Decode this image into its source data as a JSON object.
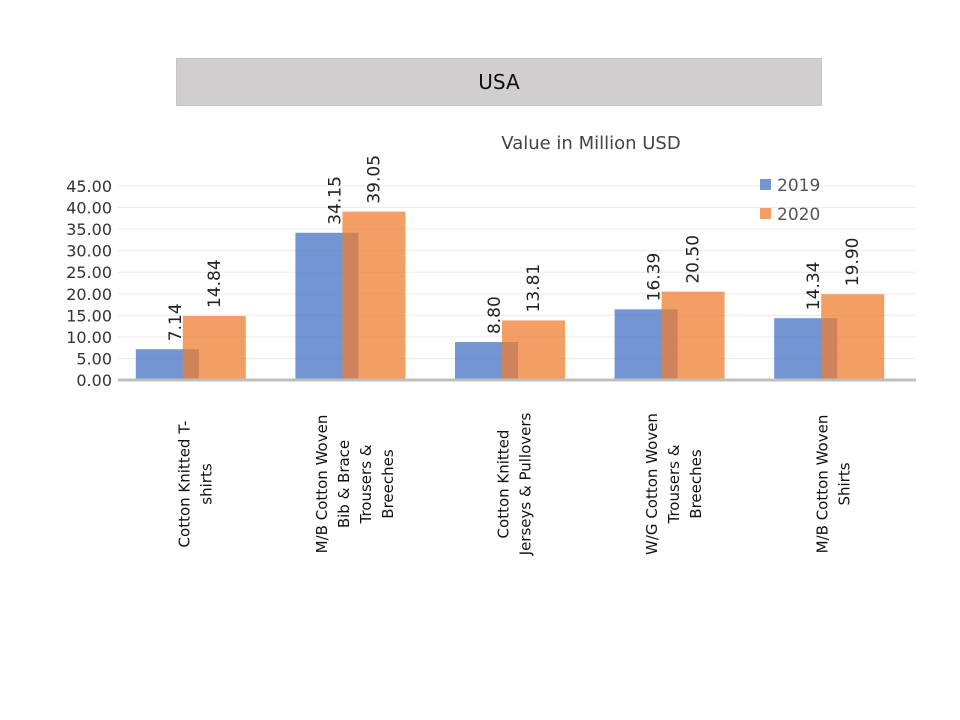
{
  "header": {
    "title": "USA"
  },
  "colors": {
    "s2019": "#4472c4",
    "s2020": "#ed7d31",
    "axis": "#bfbfbf",
    "grid": "#ececec"
  },
  "chart_data": {
    "type": "bar",
    "title": "Value in Million USD",
    "xlabel": "",
    "ylabel": "",
    "ylim": [
      0,
      45
    ],
    "yticks": [
      "0.00",
      "5.00",
      "10.00",
      "15.00",
      "20.00",
      "25.00",
      "30.00",
      "35.00",
      "40.00",
      "45.00"
    ],
    "grid": true,
    "legend_position": "top-right",
    "categories": [
      [
        "Cotton Knitted  T-",
        "shirts"
      ],
      [
        "M/B Cotton  Woven",
        "Bib & Brace",
        "Trousers &",
        "Breeches"
      ],
      [
        "Cotton  Knitted",
        "Jerseys & Pullovers"
      ],
      [
        "W/G Cotton  Woven",
        "Trousers &",
        "Breeches"
      ],
      [
        "M/B Cotton  Woven",
        "Shirts"
      ]
    ],
    "series": [
      {
        "name": "2019",
        "values": [
          7.14,
          34.15,
          8.8,
          16.39,
          14.34
        ],
        "labels": [
          "7.14",
          "34.15",
          "8.80",
          "16.39",
          "14.34"
        ]
      },
      {
        "name": "2020",
        "values": [
          14.84,
          39.05,
          13.81,
          20.5,
          19.9
        ],
        "labels": [
          "14.84",
          "39.05",
          "13.81",
          "20.50",
          "19.90"
        ]
      }
    ]
  }
}
